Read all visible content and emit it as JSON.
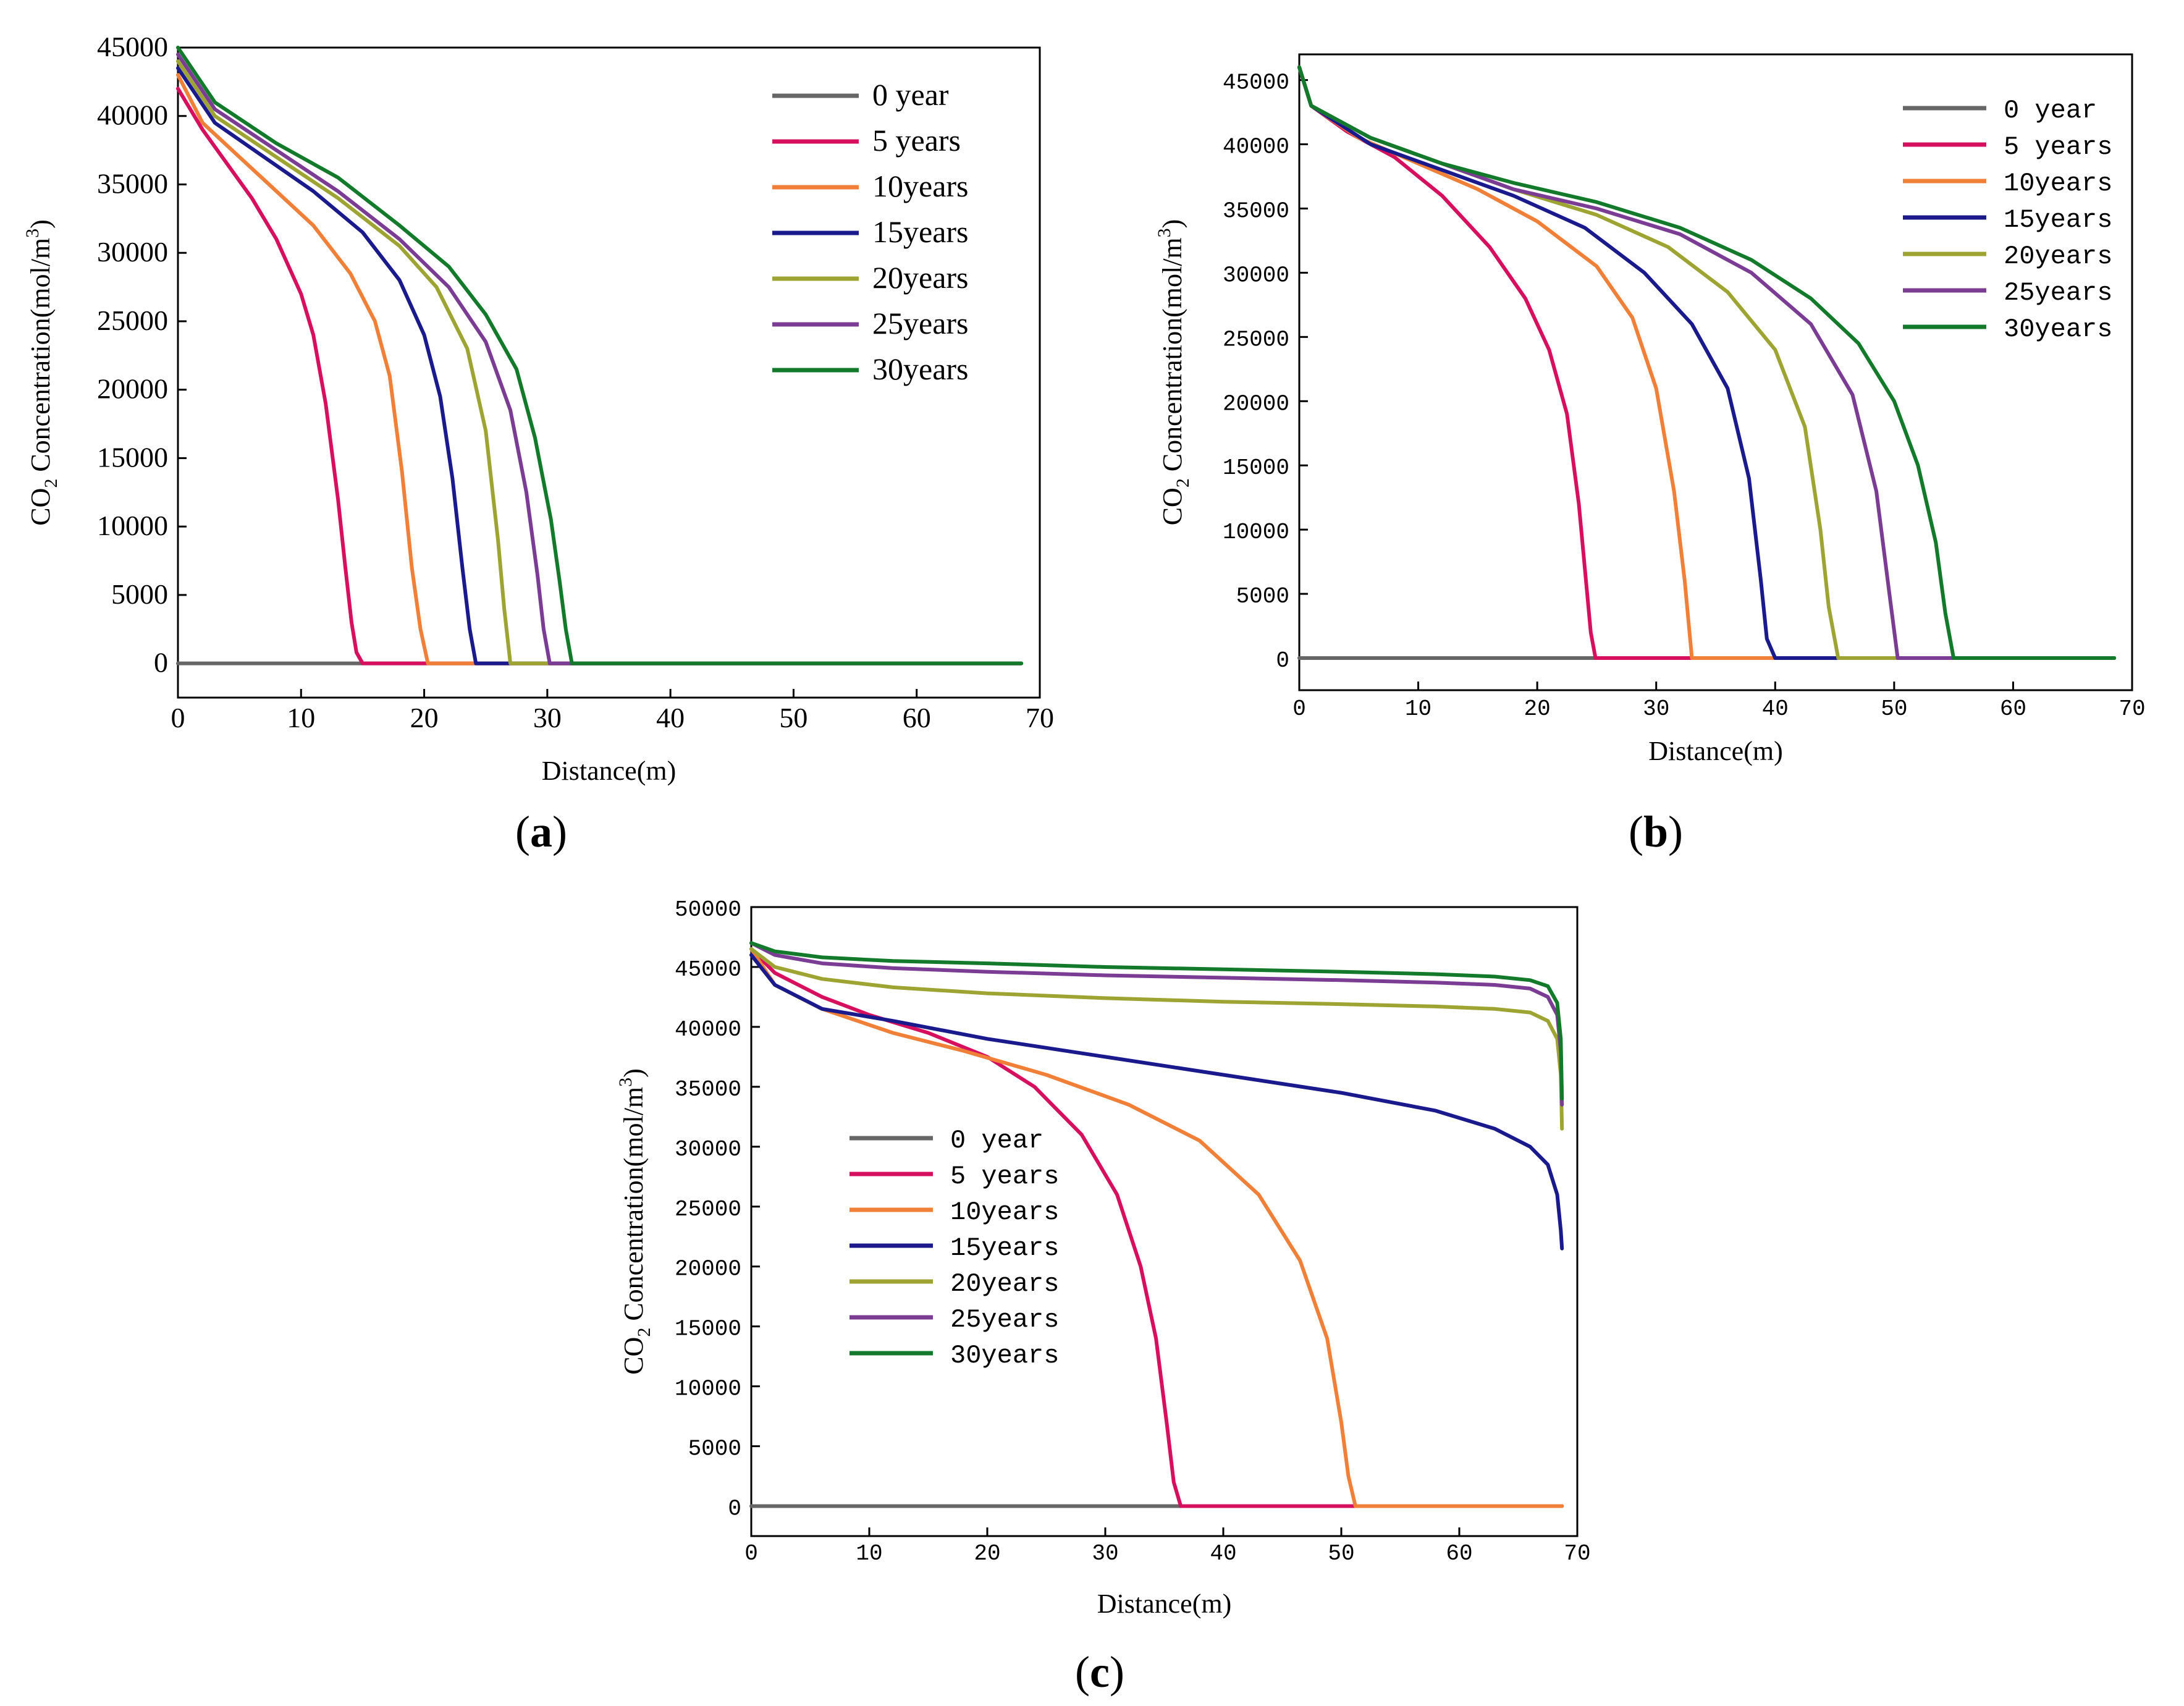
{
  "chart_data": [
    {
      "type": "line",
      "panel_label": "a",
      "xlabel": "Distance(m)",
      "ylabel_prefix": "CO",
      "ylabel_sub": "2",
      "ylabel_mid": " Concentration(mol/m",
      "ylabel_sup": "3",
      "ylabel_suffix": ")",
      "xlim": [
        0,
        70
      ],
      "ylim": [
        -2500,
        45000
      ],
      "xticks": [
        0,
        10,
        20,
        30,
        40,
        50,
        60,
        70
      ],
      "yticks": [
        0,
        5000,
        10000,
        15000,
        20000,
        25000,
        30000,
        35000,
        40000,
        45000
      ],
      "legend_position": "top-right",
      "series": [
        {
          "name": "0 year",
          "color": "#666666",
          "x": [
            0,
            68.5
          ],
          "y": [
            0,
            0
          ]
        },
        {
          "name": "5 years",
          "color": "#d6105e",
          "x": [
            0,
            2,
            4,
            6,
            8,
            10,
            11,
            12,
            13,
            13.6,
            14.1,
            14.5,
            15.0,
            68.5
          ],
          "y": [
            42000,
            39000,
            36500,
            34000,
            31000,
            27000,
            24000,
            19000,
            12000,
            7000,
            3000,
            800,
            0,
            0
          ]
        },
        {
          "name": "10years",
          "color": "#f07f38",
          "x": [
            0,
            2,
            5,
            8,
            11,
            14,
            16,
            17.2,
            18.2,
            19.0,
            19.7,
            20.3,
            68.5
          ],
          "y": [
            43000,
            39500,
            37000,
            34500,
            32000,
            28500,
            25000,
            21000,
            14000,
            7000,
            2500,
            0,
            0
          ]
        },
        {
          "name": "15years",
          "color": "#1a1a8c",
          "x": [
            0,
            3,
            7,
            11,
            15,
            18,
            20,
            21.3,
            22.3,
            23.1,
            23.7,
            24.2,
            68.5
          ],
          "y": [
            43500,
            39500,
            37000,
            34500,
            31500,
            28000,
            24000,
            19500,
            13500,
            7000,
            2500,
            0,
            0
          ]
        },
        {
          "name": "20years",
          "color": "#9ea432",
          "x": [
            0,
            3,
            8,
            13,
            18,
            21,
            23.5,
            25,
            26,
            26.5,
            27.0,
            68.5
          ],
          "y": [
            44000,
            40000,
            37000,
            34000,
            30500,
            27500,
            23000,
            17000,
            9000,
            4000,
            0,
            0
          ]
        },
        {
          "name": "25years",
          "color": "#7a3d93",
          "x": [
            0,
            3,
            8,
            13,
            18,
            22,
            25,
            27,
            28.3,
            29.2,
            29.7,
            30.2,
            68.5
          ],
          "y": [
            44500,
            40500,
            37500,
            34500,
            31000,
            27500,
            23500,
            18500,
            12500,
            6500,
            2500,
            0,
            0
          ]
        },
        {
          "name": "30years",
          "color": "#127a2a",
          "x": [
            0,
            3,
            8,
            13,
            18,
            22,
            25,
            27.5,
            29,
            30.3,
            31.0,
            31.5,
            32.0,
            68.5
          ],
          "y": [
            45000,
            41000,
            38000,
            35500,
            32000,
            29000,
            25500,
            21500,
            16500,
            10500,
            6000,
            2500,
            0,
            0
          ]
        }
      ]
    },
    {
      "type": "line",
      "panel_label": "b",
      "xlabel": "Distance(m)",
      "ylabel_prefix": "CO",
      "ylabel_sub": "2",
      "ylabel_mid": " Concentration(mol/m",
      "ylabel_sup": "3",
      "ylabel_suffix": ")",
      "xlim": [
        0,
        70
      ],
      "ylim": [
        -2500,
        47000
      ],
      "xticks": [
        0,
        10,
        20,
        30,
        40,
        50,
        60,
        70
      ],
      "yticks": [
        0,
        5000,
        10000,
        15000,
        20000,
        25000,
        30000,
        35000,
        40000,
        45000
      ],
      "legend_position": "top-right",
      "series": [
        {
          "name": "0 year",
          "color": "#666666",
          "x": [
            0,
            68.5
          ],
          "y": [
            0,
            0
          ]
        },
        {
          "name": "5 years",
          "color": "#d6105e",
          "x": [
            0,
            1,
            4,
            8,
            12,
            16,
            19,
            21,
            22.5,
            23.5,
            24.1,
            24.5,
            24.9,
            68.5
          ],
          "y": [
            46000,
            43000,
            41000,
            39000,
            36000,
            32000,
            28000,
            24000,
            19000,
            12000,
            6000,
            2000,
            0,
            0
          ]
        },
        {
          "name": "10years",
          "color": "#f07f38",
          "x": [
            0,
            1,
            5,
            10,
            15,
            20,
            25,
            28,
            30,
            31.5,
            32.4,
            33.0,
            68.5
          ],
          "y": [
            46000,
            43000,
            40500,
            38500,
            36500,
            34000,
            30500,
            26500,
            21000,
            13000,
            6000,
            0,
            0
          ]
        },
        {
          "name": "15years",
          "color": "#1a1a8c",
          "x": [
            0,
            1,
            6,
            12,
            18,
            24,
            29,
            33,
            36,
            37.8,
            38.8,
            39.3,
            40.0,
            68.5
          ],
          "y": [
            46000,
            43000,
            40000,
            38000,
            36000,
            33500,
            30000,
            26000,
            21000,
            14000,
            6000,
            1500,
            0,
            0
          ]
        },
        {
          "name": "20years",
          "color": "#9ea432",
          "x": [
            0,
            1,
            6,
            12,
            18,
            25,
            31,
            36,
            40,
            42.5,
            43.8,
            44.5,
            45.3,
            68.5
          ],
          "y": [
            46000,
            43000,
            40500,
            38500,
            36500,
            34500,
            32000,
            28500,
            24000,
            18000,
            10000,
            4000,
            0,
            0
          ]
        },
        {
          "name": "25years",
          "color": "#7a3d93",
          "x": [
            0,
            1,
            6,
            12,
            18,
            25,
            32,
            38,
            43,
            46.5,
            48.5,
            49.6,
            50.3,
            68.5
          ],
          "y": [
            46000,
            43000,
            40500,
            38500,
            36500,
            35000,
            33000,
            30000,
            26000,
            20500,
            13000,
            5000,
            0,
            0
          ]
        },
        {
          "name": "30years",
          "color": "#127a2a",
          "x": [
            0,
            1,
            6,
            12,
            18,
            25,
            32,
            38,
            43,
            47,
            50,
            52,
            53.5,
            54.3,
            55.0,
            68.5
          ],
          "y": [
            46000,
            43000,
            40500,
            38500,
            37000,
            35500,
            33500,
            31000,
            28000,
            24500,
            20000,
            15000,
            9000,
            3500,
            0,
            0
          ]
        }
      ]
    },
    {
      "type": "line",
      "panel_label": "c",
      "xlabel": "Distance(m)",
      "ylabel_prefix": "CO",
      "ylabel_sub": "2",
      "ylabel_mid": " Concentration(mol/m",
      "ylabel_sup": "3",
      "ylabel_suffix": ")",
      "xlim": [
        0,
        70
      ],
      "ylim": [
        -2500,
        50000
      ],
      "xticks": [
        0,
        10,
        20,
        30,
        40,
        50,
        60,
        70
      ],
      "yticks": [
        0,
        5000,
        10000,
        15000,
        20000,
        25000,
        30000,
        35000,
        40000,
        45000,
        50000
      ],
      "legend_position": "middle-left",
      "series": [
        {
          "name": "0 year",
          "color": "#666666",
          "x": [
            0,
            68.7
          ],
          "y": [
            0,
            0
          ]
        },
        {
          "name": "5 years",
          "color": "#d6105e",
          "x": [
            0,
            2,
            6,
            10,
            15,
            20,
            24,
            28,
            31,
            33,
            34.3,
            35.2,
            35.8,
            36.4,
            68.7
          ],
          "y": [
            46500,
            44500,
            42500,
            41000,
            39500,
            37500,
            35000,
            31000,
            26000,
            20000,
            14000,
            7000,
            2000,
            0,
            0
          ]
        },
        {
          "name": "10years",
          "color": "#f07f38",
          "x": [
            0,
            2,
            6,
            12,
            18,
            25,
            32,
            38,
            43,
            46.5,
            48.8,
            50.0,
            50.6,
            51.2,
            68.7
          ],
          "y": [
            46500,
            43500,
            41500,
            39500,
            38000,
            36000,
            33500,
            30500,
            26000,
            20500,
            14000,
            7000,
            2500,
            0,
            0
          ]
        },
        {
          "name": "15years",
          "color": "#1a1a8c",
          "x": [
            0,
            2,
            6,
            12,
            20,
            30,
            40,
            50,
            58,
            63,
            66,
            67.5,
            68.3,
            68.6,
            68.7
          ],
          "y": [
            46000,
            43500,
            41500,
            40500,
            39000,
            37500,
            36000,
            34500,
            33000,
            31500,
            30000,
            28500,
            26000,
            23000,
            21500
          ]
        },
        {
          "name": "20years",
          "color": "#9ea432",
          "x": [
            0,
            2,
            6,
            12,
            20,
            30,
            40,
            50,
            58,
            63,
            66,
            67.5,
            68.3,
            68.6,
            68.7
          ],
          "y": [
            46500,
            45000,
            44000,
            43300,
            42800,
            42400,
            42100,
            41900,
            41700,
            41500,
            41200,
            40500,
            39000,
            36000,
            31500
          ]
        },
        {
          "name": "25years",
          "color": "#7a3d93",
          "x": [
            0,
            2,
            6,
            12,
            20,
            30,
            40,
            50,
            58,
            63,
            66,
            67.5,
            68.3,
            68.6,
            68.7
          ],
          "y": [
            47000,
            46000,
            45300,
            44900,
            44600,
            44300,
            44100,
            43900,
            43700,
            43500,
            43200,
            42500,
            41000,
            38000,
            33500
          ]
        },
        {
          "name": "30years",
          "color": "#127a2a",
          "x": [
            0,
            2,
            6,
            12,
            20,
            30,
            40,
            50,
            58,
            63,
            66,
            67.5,
            68.3,
            68.6,
            68.7
          ],
          "y": [
            47000,
            46300,
            45800,
            45500,
            45300,
            45000,
            44800,
            44600,
            44400,
            44200,
            43900,
            43400,
            42000,
            39000,
            34000
          ]
        }
      ]
    }
  ]
}
